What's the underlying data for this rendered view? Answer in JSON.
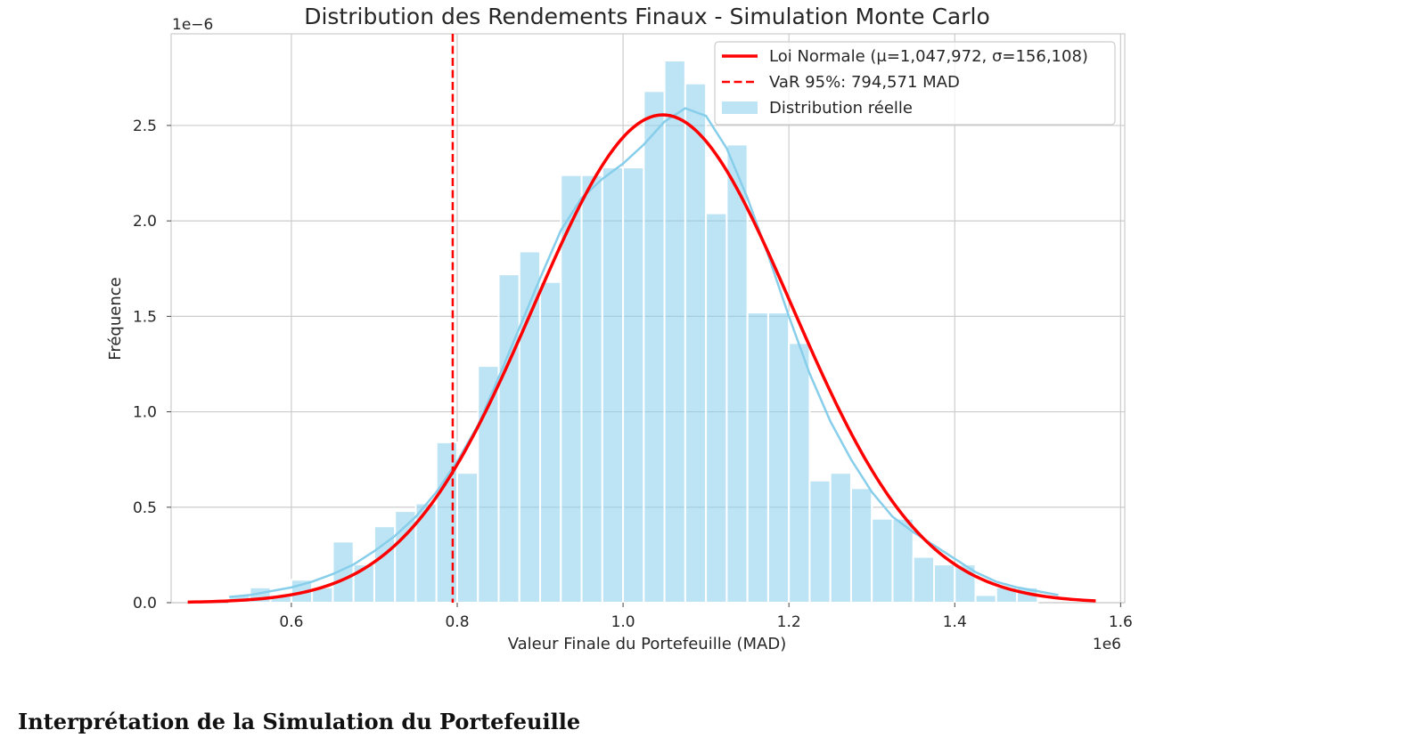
{
  "chart_data": {
    "type": "bar",
    "title": "Distribution des Rendements Finaux - Simulation Monte Carlo",
    "xlabel": "Valeur Finale du Portefeuille (MAD)",
    "ylabel": "Fréquence",
    "x_offset_label": "1e6",
    "y_offset_label": "1e−6",
    "xlim": [
      0.455,
      1.605
    ],
    "ylim": [
      0.0,
      2.98
    ],
    "x_scale_factor": 1000000,
    "y_scale_factor": 1e-06,
    "xticks": [
      0.6,
      0.8,
      1.0,
      1.2,
      1.4,
      1.6
    ],
    "xtick_labels": [
      "0.6",
      "0.8",
      "1.0",
      "1.2",
      "1.4",
      "1.6"
    ],
    "yticks": [
      0.0,
      0.5,
      1.0,
      1.5,
      2.0,
      2.5
    ],
    "ytick_labels": [
      "0.0",
      "0.5",
      "1.0",
      "1.5",
      "2.0",
      "2.5"
    ],
    "grid": true,
    "legend_position": "top-right",
    "histogram": {
      "name": "Distribution réelle",
      "color": "#87CEEB",
      "bin_start": 0.525,
      "bin_width": 0.025,
      "values": [
        0.04,
        0.08,
        0.04,
        0.12,
        0.08,
        0.32,
        0.2,
        0.4,
        0.48,
        0.52,
        0.84,
        0.68,
        1.24,
        1.72,
        1.84,
        1.68,
        2.24,
        2.24,
        2.28,
        2.28,
        2.68,
        2.84,
        2.72,
        2.04,
        2.4,
        1.52,
        1.52,
        1.36,
        0.64,
        0.68,
        0.6,
        0.44,
        0.44,
        0.24,
        0.2,
        0.2,
        0.04,
        0.08,
        0.08
      ]
    },
    "kde_curve": {
      "color": "#87CEEB",
      "x": [
        0.525,
        0.55,
        0.575,
        0.6,
        0.625,
        0.65,
        0.675,
        0.7,
        0.725,
        0.75,
        0.775,
        0.8,
        0.825,
        0.85,
        0.875,
        0.9,
        0.925,
        0.95,
        0.975,
        1.0,
        1.025,
        1.05,
        1.075,
        1.1,
        1.125,
        1.15,
        1.175,
        1.2,
        1.225,
        1.25,
        1.275,
        1.3,
        1.325,
        1.35,
        1.375,
        1.4,
        1.425,
        1.45,
        1.475,
        1.5,
        1.525
      ],
      "y": [
        0.03,
        0.04,
        0.06,
        0.08,
        0.11,
        0.15,
        0.2,
        0.27,
        0.35,
        0.45,
        0.58,
        0.74,
        0.93,
        1.18,
        1.44,
        1.7,
        1.95,
        2.12,
        2.22,
        2.3,
        2.4,
        2.52,
        2.59,
        2.55,
        2.38,
        2.12,
        1.82,
        1.5,
        1.2,
        0.95,
        0.75,
        0.58,
        0.45,
        0.37,
        0.3,
        0.23,
        0.16,
        0.11,
        0.08,
        0.06,
        0.04
      ]
    },
    "normal_curve": {
      "name": "Loi Normale (μ=1,047,972, σ=156,108)",
      "color": "#ff0000",
      "mu": 1047972,
      "sigma": 156108,
      "x_range": [
        0.475,
        1.57
      ]
    },
    "var_line": {
      "name": "VaR 95%: 794,571 MAD",
      "color": "#ff0000",
      "x": 794571
    }
  },
  "section_heading": "Interprétation de la Simulation du Portefeuille"
}
